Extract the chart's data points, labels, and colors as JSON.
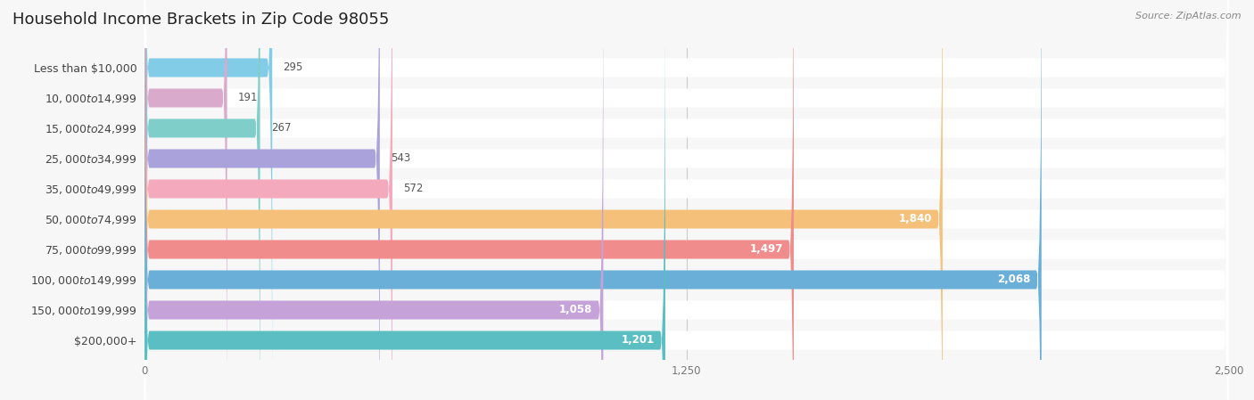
{
  "title": "Household Income Brackets in Zip Code 98055",
  "source": "Source: ZipAtlas.com",
  "categories": [
    "Less than $10,000",
    "$10,000 to $14,999",
    "$15,000 to $24,999",
    "$25,000 to $34,999",
    "$35,000 to $49,999",
    "$50,000 to $74,999",
    "$75,000 to $99,999",
    "$100,000 to $149,999",
    "$150,000 to $199,999",
    "$200,000+"
  ],
  "values": [
    295,
    191,
    267,
    543,
    572,
    1840,
    1497,
    2068,
    1058,
    1201
  ],
  "bar_colors": [
    "#82cce8",
    "#d9aacb",
    "#80ceca",
    "#aaa2da",
    "#f5a9bc",
    "#f5c07a",
    "#f08c8c",
    "#6aafd8",
    "#c5a2d8",
    "#5bbec2"
  ],
  "xlim": [
    0,
    2500
  ],
  "xticks": [
    0,
    1250,
    2500
  ],
  "background_color": "#f7f7f7",
  "title_fontsize": 13,
  "label_fontsize": 9,
  "value_fontsize": 8.5,
  "value_threshold": 700
}
